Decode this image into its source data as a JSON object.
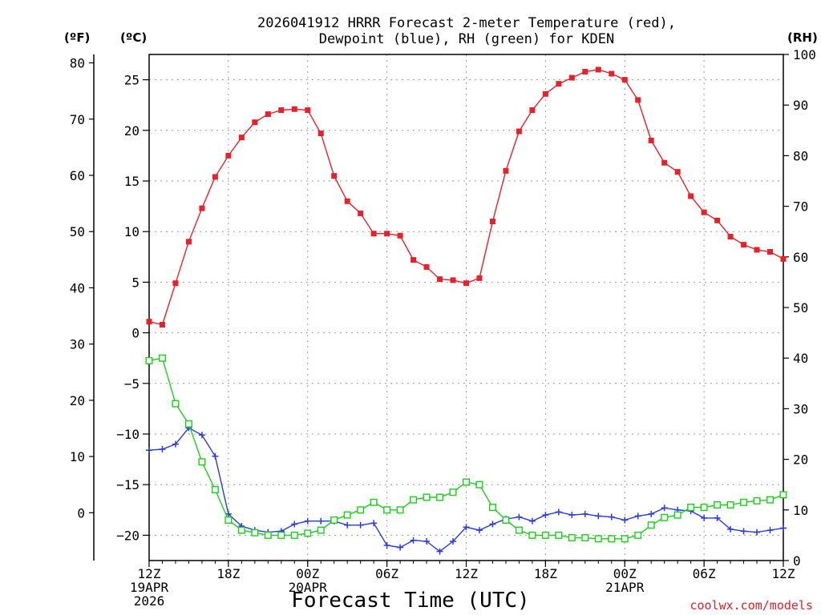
{
  "chart_data": {
    "type": "line",
    "title_lines": [
      "2026041912 HRRR Forecast 2-meter Temperature (red),",
      "Dewpoint (blue), RH (green) for KDEN"
    ],
    "xlabel": "Forecast Time (UTC)",
    "credit": "coolwx.com/models",
    "units": {
      "fahrenheit": "(ºF)",
      "celsius": "(ºC)",
      "rh": "(RH)"
    },
    "celsius_axis": {
      "range": [
        -22.5,
        27.5
      ],
      "ticks": [
        25,
        20,
        15,
        10,
        5,
        0,
        -5,
        -10,
        -15,
        -20
      ]
    },
    "fahrenheit_axis": {
      "range": [
        -8.5,
        81.5
      ],
      "ticks": [
        80,
        70,
        60,
        50,
        40,
        30,
        20,
        10,
        0
      ]
    },
    "rh_axis": {
      "range": [
        0,
        100
      ],
      "ticks": [
        100,
        90,
        80,
        70,
        60,
        50,
        40,
        30,
        20,
        10,
        0
      ]
    },
    "x_range_hours": [
      0,
      48
    ],
    "x_ticks": [
      {
        "hour": 0,
        "lines": [
          "12Z",
          "19APR",
          "2026"
        ]
      },
      {
        "hour": 6,
        "lines": [
          "18Z"
        ]
      },
      {
        "hour": 12,
        "lines": [
          "00Z",
          "20APR"
        ]
      },
      {
        "hour": 18,
        "lines": [
          "06Z"
        ]
      },
      {
        "hour": 24,
        "lines": [
          "12Z"
        ]
      },
      {
        "hour": 30,
        "lines": [
          "18Z"
        ]
      },
      {
        "hour": 36,
        "lines": [
          "00Z",
          "21APR"
        ]
      },
      {
        "hour": 42,
        "lines": [
          "06Z"
        ]
      },
      {
        "hour": 48,
        "lines": [
          "12Z"
        ]
      }
    ],
    "x_hours": [
      0,
      1,
      2,
      3,
      4,
      5,
      6,
      7,
      8,
      9,
      10,
      11,
      12,
      13,
      14,
      15,
      16,
      17,
      18,
      19,
      20,
      21,
      22,
      23,
      24,
      25,
      26,
      27,
      28,
      29,
      30,
      31,
      32,
      33,
      34,
      35,
      36,
      37,
      38,
      39,
      40,
      41,
      42,
      43,
      44,
      45,
      46,
      47,
      48
    ],
    "series": [
      {
        "name": "Temperature",
        "color": "#e8202a",
        "axis": "celsius",
        "marker": "filled-square",
        "values": [
          1.1,
          0.8,
          4.9,
          9.0,
          12.3,
          15.4,
          17.5,
          19.3,
          20.8,
          21.6,
          22.0,
          22.1,
          22.0,
          19.7,
          15.5,
          13.0,
          11.8,
          9.8,
          9.8,
          9.6,
          7.2,
          6.5,
          5.3,
          5.2,
          4.9,
          5.4,
          11.0,
          16.0,
          19.9,
          22.0,
          23.6,
          24.6,
          25.2,
          25.8,
          26.0,
          25.6,
          25.0,
          23.0,
          19.0,
          16.8,
          15.9,
          13.5,
          11.9,
          11.1,
          9.5,
          8.7,
          8.2,
          8.0,
          7.3
        ]
      },
      {
        "name": "Dewpoint",
        "color": "#2a3ae8",
        "axis": "celsius",
        "marker": "plus",
        "values": [
          -11.6,
          -11.5,
          -11.0,
          -9.4,
          -10.1,
          -12.2,
          -17.9,
          -19.1,
          -19.5,
          -19.7,
          -19.6,
          -18.9,
          -18.6,
          -18.6,
          -18.6,
          -19.0,
          -19.0,
          -18.8,
          -21.0,
          -21.2,
          -20.5,
          -20.6,
          -21.6,
          -20.6,
          -19.2,
          -19.5,
          -18.9,
          -18.4,
          -18.2,
          -18.6,
          -18.0,
          -17.7,
          -18.0,
          -17.9,
          -18.1,
          -18.2,
          -18.5,
          -18.1,
          -17.9,
          -17.3,
          -17.5,
          -17.6,
          -18.3,
          -18.3,
          -19.4,
          -19.6,
          -19.7,
          -19.5,
          -19.3
        ]
      },
      {
        "name": "RH",
        "color": "#18d018",
        "axis": "rh",
        "marker": "open-square",
        "values": [
          39.5,
          40.0,
          31.0,
          27.0,
          19.5,
          14.0,
          8.0,
          6.0,
          5.5,
          5.0,
          5.0,
          5.0,
          5.4,
          6.0,
          8.0,
          9.0,
          10.0,
          11.5,
          10.0,
          10.0,
          12.0,
          12.5,
          12.5,
          13.5,
          15.5,
          15.0,
          10.5,
          8.0,
          6.0,
          5.0,
          5.0,
          5.0,
          4.5,
          4.5,
          4.3,
          4.3,
          4.3,
          5.0,
          7.0,
          8.5,
          9.0,
          10.5,
          10.5,
          11.0,
          11.0,
          11.5,
          11.8,
          12.0,
          13.0
        ]
      }
    ]
  }
}
